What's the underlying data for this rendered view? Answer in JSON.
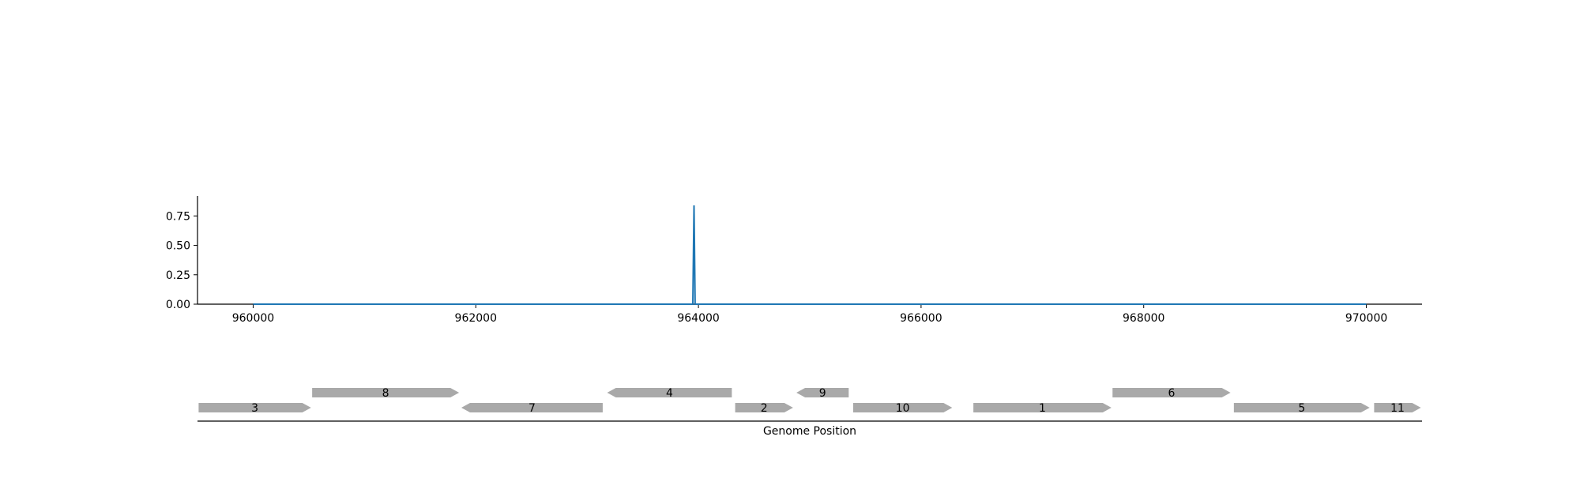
{
  "chart_data": {
    "type": "line",
    "title": "",
    "xlabel": "Genome Position",
    "ylabel": "",
    "xlim": [
      959500,
      970500
    ],
    "ylim": [
      0,
      0.92
    ],
    "x_ticks": [
      960000,
      962000,
      964000,
      966000,
      968000,
      970000
    ],
    "x_tick_labels": [
      "960000",
      "962000",
      "964000",
      "966000",
      "968000",
      "970000"
    ],
    "y_ticks": [
      0.0,
      0.25,
      0.5,
      0.75
    ],
    "y_tick_labels": [
      "0.00",
      "0.25",
      "0.50",
      "0.75"
    ],
    "grid": false,
    "series_color": "#1f77b4",
    "series": [
      {
        "x": [
          960000,
          963950,
          963960,
          963970,
          970000
        ],
        "values": [
          0.0,
          0.0,
          0.84,
          0.0,
          0.0
        ]
      }
    ],
    "genes": [
      {
        "label": "3",
        "start": 959510,
        "end": 960520,
        "strand": "+",
        "row": 0
      },
      {
        "label": "8",
        "start": 960530,
        "end": 961850,
        "strand": "+",
        "row": 1
      },
      {
        "label": "7",
        "start": 961870,
        "end": 963140,
        "strand": "-",
        "row": 0
      },
      {
        "label": "4",
        "start": 963180,
        "end": 964300,
        "strand": "-",
        "row": 1
      },
      {
        "label": "2",
        "start": 964330,
        "end": 964850,
        "strand": "+",
        "row": 0
      },
      {
        "label": "9",
        "start": 964880,
        "end": 965350,
        "strand": "-",
        "row": 1
      },
      {
        "label": "10",
        "start": 965390,
        "end": 966280,
        "strand": "+",
        "row": 0
      },
      {
        "label": "1",
        "start": 966470,
        "end": 967710,
        "strand": "+",
        "row": 0
      },
      {
        "label": "6",
        "start": 967720,
        "end": 968780,
        "strand": "+",
        "row": 1
      },
      {
        "label": "5",
        "start": 968810,
        "end": 970030,
        "strand": "+",
        "row": 0
      },
      {
        "label": "11",
        "start": 970070,
        "end": 970490,
        "strand": "+",
        "row": 0
      }
    ],
    "gene_color": "#a9a9a9"
  }
}
